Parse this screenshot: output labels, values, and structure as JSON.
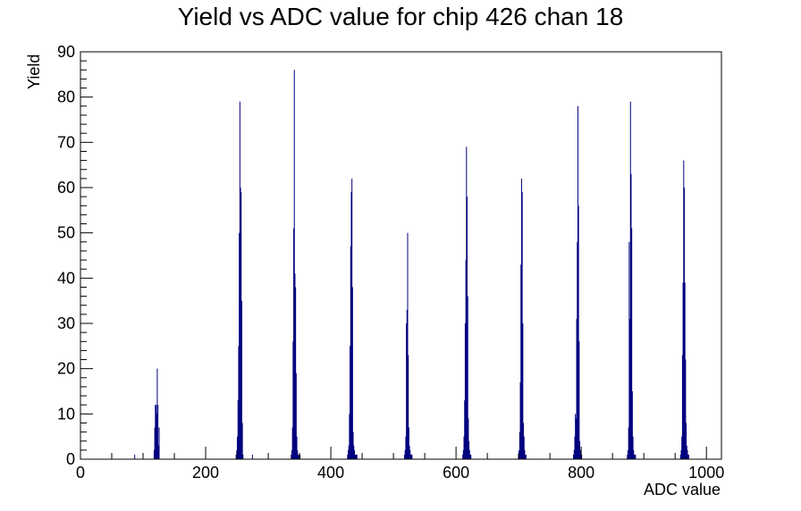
{
  "chart_data": {
    "type": "bar",
    "title": "Yield vs ADC value for chip 426 chan 18",
    "xlabel": "ADC value",
    "ylabel": "Yield",
    "xlim": [
      0,
      1024
    ],
    "ylim": [
      0,
      90
    ],
    "x_ticks": [
      0,
      200,
      400,
      600,
      800,
      1000
    ],
    "y_ticks": [
      0,
      10,
      20,
      30,
      40,
      50,
      60,
      70,
      80,
      90
    ],
    "grid": false,
    "legend": "none",
    "color": "#00007f",
    "series": [
      {
        "x": [
          86,
          117,
          118,
          119,
          120,
          121,
          122,
          123,
          124,
          125,
          248,
          249,
          250,
          251,
          252,
          253,
          254,
          255,
          256,
          257,
          258,
          259,
          274,
          336,
          337,
          338,
          339,
          340,
          341,
          342,
          343,
          344,
          345,
          346,
          347,
          348,
          349,
          350,
          426,
          427,
          428,
          429,
          430,
          431,
          432,
          433,
          434,
          435,
          436,
          437,
          438,
          439,
          440,
          441,
          517,
          518,
          519,
          520,
          521,
          522,
          523,
          524,
          525,
          526,
          527,
          528,
          529,
          610,
          611,
          612,
          613,
          614,
          615,
          616,
          617,
          618,
          619,
          620,
          621,
          622,
          623,
          699,
          700,
          701,
          702,
          703,
          704,
          705,
          706,
          707,
          708,
          709,
          710,
          711,
          787,
          788,
          789,
          790,
          791,
          792,
          793,
          794,
          795,
          796,
          797,
          798,
          799,
          800,
          873,
          874,
          875,
          876,
          877,
          878,
          879,
          880,
          881,
          882,
          883,
          884,
          885,
          886,
          958,
          959,
          960,
          961,
          962,
          963,
          964,
          965,
          966,
          967,
          968,
          969,
          970,
          971
        ],
        "y": [
          1,
          2,
          7,
          12,
          12,
          10,
          20,
          12,
          3,
          7,
          1,
          2,
          5,
          13,
          25,
          50,
          79,
          60,
          59,
          35,
          8,
          1,
          1,
          1,
          2,
          7,
          26,
          51,
          86,
          41,
          38,
          19,
          5,
          2,
          1,
          1,
          1,
          1,
          1,
          2,
          3,
          10,
          25,
          47,
          59,
          62,
          38,
          6,
          3,
          2,
          1,
          1,
          1,
          1,
          1,
          2,
          5,
          30,
          33,
          50,
          23,
          7,
          3,
          2,
          1,
          1,
          1,
          1,
          2,
          5,
          13,
          30,
          44,
          69,
          58,
          36,
          9,
          4,
          2,
          1,
          1,
          1,
          2,
          6,
          17,
          43,
          62,
          59,
          30,
          8,
          5,
          2,
          1,
          1,
          1,
          2,
          5,
          10,
          9,
          31,
          48,
          78,
          56,
          26,
          4,
          2,
          1,
          1,
          1,
          2,
          7,
          48,
          31,
          79,
          63,
          51,
          15,
          5,
          2,
          1,
          1,
          1,
          1,
          2,
          5,
          23,
          39,
          66,
          60,
          39,
          22,
          8,
          3,
          2,
          1,
          1
        ]
      }
    ]
  }
}
